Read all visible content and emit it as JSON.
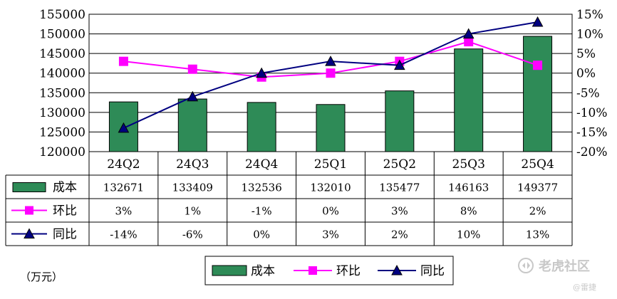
{
  "chart_data": {
    "type": "bar",
    "categories": [
      "24Q2",
      "24Q3",
      "24Q4",
      "25Q1",
      "25Q2",
      "25Q3",
      "25Q4"
    ],
    "series": [
      {
        "name": "成本",
        "kind": "bar",
        "axis": "left",
        "color": "#2e8b57",
        "values": [
          132671,
          133409,
          132536,
          132010,
          135477,
          146163,
          149377
        ]
      },
      {
        "name": "环比",
        "kind": "line",
        "axis": "right",
        "color": "#ff00ff",
        "marker": "square",
        "values": [
          3,
          1,
          -1,
          0,
          3,
          8,
          2
        ]
      },
      {
        "name": "同比",
        "kind": "line",
        "axis": "right",
        "color": "#000080",
        "marker": "triangle",
        "values": [
          -14,
          -6,
          0,
          3,
          2,
          10,
          13
        ]
      }
    ],
    "table_rows": [
      {
        "label": "成本",
        "cells": [
          "132671",
          "133409",
          "132536",
          "132010",
          "135477",
          "146163",
          "149377"
        ]
      },
      {
        "label": "环比",
        "cells": [
          "3%",
          "1%",
          "-1%",
          "0%",
          "3%",
          "8%",
          "2%"
        ]
      },
      {
        "label": "同比",
        "cells": [
          "-14%",
          "-6%",
          "0%",
          "3%",
          "2%",
          "10%",
          "13%"
        ]
      }
    ],
    "left_axis": {
      "min": 120000,
      "max": 155000,
      "step": 5000,
      "ticks": [
        "120000",
        "125000",
        "130000",
        "135000",
        "140000",
        "145000",
        "150000",
        "155000"
      ]
    },
    "right_axis": {
      "min": -20,
      "max": 15,
      "step": 5,
      "ticks": [
        "-20%",
        "-15%",
        "-10%",
        "-5%",
        "0%",
        "5%",
        "10%",
        "15%"
      ]
    },
    "unit_label": "（万元）",
    "legend": [
      "成本",
      "环比",
      "同比"
    ],
    "legend_position": "bottom"
  },
  "watermark": {
    "brand": "老虎社区",
    "user": "@雷捷"
  }
}
